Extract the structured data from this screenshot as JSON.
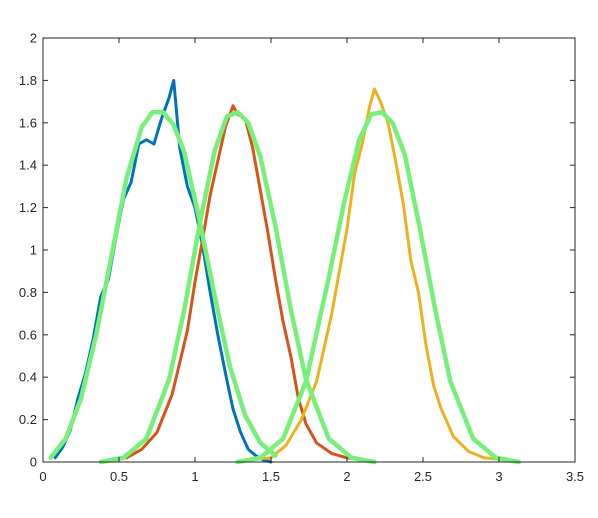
{
  "chart_data": {
    "type": "line",
    "title": "",
    "xlabel": "",
    "ylabel": "",
    "xlim": [
      0,
      3.5
    ],
    "ylim": [
      0,
      2
    ],
    "grid": false,
    "legend": "none",
    "x_ticks": [
      "0",
      "0.5",
      "1",
      "1.5",
      "2",
      "2.5",
      "3",
      "3.5"
    ],
    "y_ticks": [
      "0",
      "0.2",
      "0.4",
      "0.6",
      "0.8",
      "1",
      "1.2",
      "1.4",
      "1.6",
      "1.8",
      "2"
    ],
    "series": [
      {
        "kind": "empirical",
        "color": "#0072BD",
        "x": [
          0.08,
          0.13,
          0.18,
          0.23,
          0.28,
          0.33,
          0.38,
          0.43,
          0.48,
          0.53,
          0.58,
          0.63,
          0.68,
          0.73,
          0.78,
          0.83,
          0.86,
          0.9,
          0.95,
          1.0,
          1.05,
          1.1,
          1.15,
          1.2,
          1.25,
          1.3,
          1.35,
          1.4,
          1.45,
          1.5
        ],
        "y": [
          0.02,
          0.07,
          0.15,
          0.3,
          0.42,
          0.58,
          0.78,
          0.86,
          1.06,
          1.24,
          1.32,
          1.5,
          1.52,
          1.5,
          1.62,
          1.72,
          1.8,
          1.48,
          1.3,
          1.2,
          1.02,
          0.8,
          0.6,
          0.42,
          0.25,
          0.14,
          0.06,
          0.03,
          0.01,
          0.0
        ]
      },
      {
        "kind": "empirical",
        "color": "#D95319",
        "x": [
          0.55,
          0.65,
          0.75,
          0.85,
          0.95,
          1.0,
          1.05,
          1.1,
          1.15,
          1.2,
          1.25,
          1.28,
          1.33,
          1.38,
          1.43,
          1.48,
          1.53,
          1.58,
          1.63,
          1.68,
          1.73,
          1.8,
          1.9,
          2.0,
          2.1
        ],
        "y": [
          0.02,
          0.06,
          0.14,
          0.32,
          0.62,
          0.85,
          1.05,
          1.26,
          1.42,
          1.58,
          1.68,
          1.64,
          1.62,
          1.48,
          1.28,
          1.08,
          0.86,
          0.66,
          0.5,
          0.3,
          0.18,
          0.09,
          0.04,
          0.02,
          0.01
        ]
      },
      {
        "kind": "empirical",
        "color": "#EDB120",
        "x": [
          1.35,
          1.5,
          1.6,
          1.7,
          1.8,
          1.9,
          1.95,
          2.0,
          2.05,
          2.1,
          2.15,
          2.18,
          2.22,
          2.27,
          2.32,
          2.37,
          2.42,
          2.47,
          2.52,
          2.57,
          2.62,
          2.7,
          2.8,
          2.9,
          3.05
        ],
        "y": [
          0.01,
          0.02,
          0.08,
          0.2,
          0.38,
          0.7,
          0.9,
          1.1,
          1.36,
          1.5,
          1.68,
          1.76,
          1.7,
          1.6,
          1.42,
          1.22,
          0.95,
          0.8,
          0.55,
          0.36,
          0.25,
          0.12,
          0.05,
          0.02,
          0.01
        ]
      },
      {
        "kind": "fit",
        "color": "#77F07A",
        "x": [
          0.05,
          0.15,
          0.25,
          0.35,
          0.45,
          0.55,
          0.65,
          0.72,
          0.79,
          0.86,
          0.93,
          1.03,
          1.13,
          1.23,
          1.33,
          1.43,
          1.53
        ],
        "y": [
          0.02,
          0.11,
          0.3,
          0.6,
          0.97,
          1.34,
          1.58,
          1.65,
          1.65,
          1.59,
          1.46,
          1.14,
          0.78,
          0.45,
          0.22,
          0.09,
          0.03
        ]
      },
      {
        "kind": "fit",
        "color": "#77F07A",
        "x": [
          0.38,
          0.53,
          0.68,
          0.83,
          0.93,
          1.03,
          1.13,
          1.21,
          1.28,
          1.35,
          1.43,
          1.53,
          1.63,
          1.73,
          1.88,
          2.03,
          2.18
        ],
        "y": [
          0.0,
          0.02,
          0.11,
          0.39,
          0.72,
          1.12,
          1.47,
          1.63,
          1.65,
          1.6,
          1.44,
          1.11,
          0.72,
          0.39,
          0.11,
          0.02,
          0.0
        ]
      },
      {
        "kind": "fit",
        "color": "#77F07A",
        "x": [
          1.28,
          1.43,
          1.58,
          1.73,
          1.88,
          1.98,
          2.08,
          2.16,
          2.23,
          2.3,
          2.38,
          2.48,
          2.58,
          2.68,
          2.83,
          2.98,
          3.13
        ],
        "y": [
          0.0,
          0.02,
          0.11,
          0.38,
          0.87,
          1.22,
          1.52,
          1.64,
          1.65,
          1.6,
          1.45,
          1.1,
          0.72,
          0.38,
          0.11,
          0.02,
          0.0
        ]
      }
    ]
  }
}
